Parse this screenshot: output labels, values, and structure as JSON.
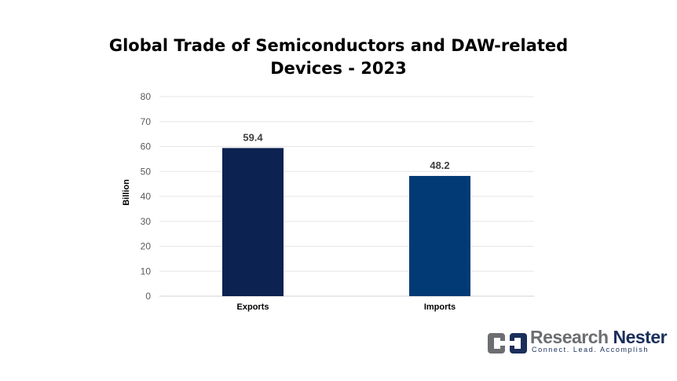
{
  "chart_data": {
    "type": "bar",
    "title_lines": [
      "Global Trade of Semiconductors and DAW-related",
      "Devices - 2023"
    ],
    "categories": [
      "Exports",
      "Imports"
    ],
    "values": [
      59.4,
      48.2
    ],
    "data_labels": [
      "59.4",
      "48.2"
    ],
    "bar_colors": [
      "#0c2250",
      "#023a75"
    ],
    "xlabel": "",
    "ylabel": "Billion",
    "ylim": [
      0,
      80
    ],
    "yticks": [
      0,
      10,
      20,
      30,
      40,
      50,
      60,
      70,
      80
    ],
    "grid": true,
    "legend": "none"
  },
  "logo": {
    "word1": "Research",
    "word2": "Nester",
    "tagline": "Connect. Lead. Accomplish"
  },
  "colors": {
    "grid": "#e6e6e6",
    "axis_text": "#595959",
    "label_text": "#404040"
  }
}
